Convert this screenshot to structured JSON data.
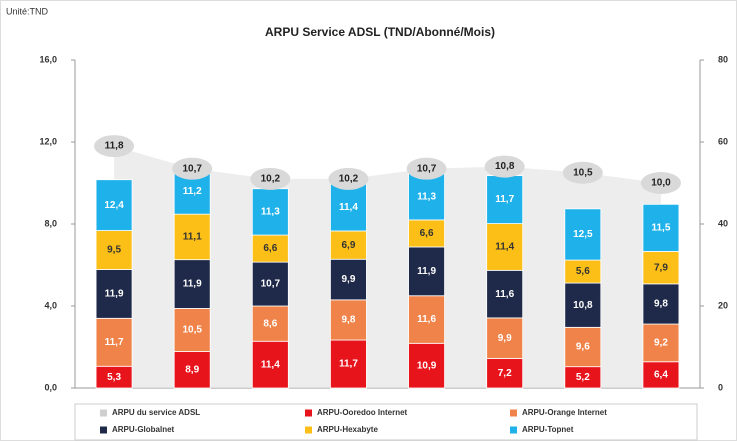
{
  "chart_data": {
    "type": "bar",
    "stacked": true,
    "title": "ARPU Service ADSL (TND/Abonné/Mois)",
    "unit_label": "Unité:TND",
    "categories": [
      null,
      null,
      null,
      null,
      null,
      null,
      null,
      null
    ],
    "ylim": [
      0,
      16
    ],
    "yticks": [
      {
        "value": 0,
        "label": "0,0"
      },
      {
        "value": 4,
        "label": "4,0"
      },
      {
        "value": 8,
        "label": "8,0"
      },
      {
        "value": 12,
        "label": "12,0"
      },
      {
        "value": 16,
        "label": "16,0"
      }
    ],
    "y2lim": [
      0,
      80
    ],
    "y2ticks": [
      0,
      20,
      40,
      60,
      80
    ],
    "series": [
      {
        "name": "ARPU du service ADSL",
        "type": "area",
        "color": "#e6e6e6",
        "values": [
          11.8,
          10.7,
          10.2,
          10.2,
          10.7,
          10.8,
          10.5,
          10.0
        ],
        "value_labels": [
          "11,8",
          "10,7",
          "10,2",
          "10,2",
          "10,7",
          "10,8",
          "10,5",
          "10,0"
        ]
      },
      {
        "name": "ARPU-Ooredoo Internet",
        "axis": "y2",
        "color": "#e8141c",
        "values": [
          5.3,
          8.9,
          11.4,
          11.7,
          10.9,
          7.2,
          5.2,
          6.4
        ],
        "value_labels": [
          "5,3",
          "8,9",
          "11,4",
          "11,7",
          "10,9",
          "7,2",
          "5,2",
          "6,4"
        ]
      },
      {
        "name": "ARPU-Orange Internet",
        "axis": "y2",
        "color": "#f0834a",
        "values": [
          11.7,
          10.5,
          8.6,
          9.8,
          11.6,
          9.9,
          9.6,
          9.2
        ],
        "value_labels": [
          "11,7",
          "10,5",
          "8,6",
          "9,8",
          "11,6",
          "9,9",
          "9,6",
          "9,2"
        ]
      },
      {
        "name": "ARPU-Globalnet",
        "axis": "y2",
        "color": "#1f2a4a",
        "values": [
          11.9,
          11.9,
          10.7,
          9.9,
          11.9,
          11.6,
          10.8,
          9.8
        ],
        "value_labels": [
          "11,9",
          "11,9",
          "10,7",
          "9,9",
          "11,9",
          "11,6",
          "10,8",
          "9,8"
        ]
      },
      {
        "name": "ARPU-Hexabyte",
        "axis": "y2",
        "color": "#fbbf18",
        "values": [
          9.5,
          11.1,
          6.6,
          6.9,
          6.6,
          11.4,
          5.6,
          7.9
        ],
        "value_labels": [
          "9,5",
          "11,1",
          "6,6",
          "6,9",
          "6,6",
          "11,4",
          "5,6",
          "7,9"
        ]
      },
      {
        "name": "ARPU-Topnet",
        "axis": "y2",
        "color": "#1fb2ea",
        "values": [
          12.4,
          11.2,
          11.3,
          11.4,
          11.3,
          11.7,
          12.5,
          11.5
        ],
        "value_labels": [
          "12,4",
          "11,2",
          "11,3",
          "11,4",
          "11,3",
          "11,7",
          "12,5",
          "11,5"
        ]
      }
    ]
  }
}
